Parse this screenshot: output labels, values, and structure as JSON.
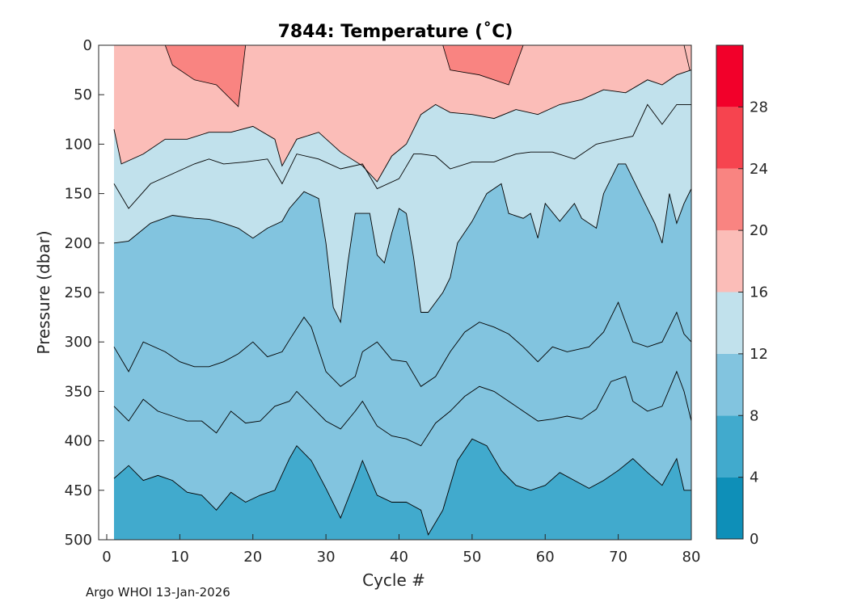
{
  "chart_data": {
    "type": "heatmap",
    "subtype": "filled-contour",
    "title": "7844:  Temperature (˚C)",
    "xlabel": "Cycle #",
    "ylabel": "Pressure (dbar)",
    "xlim": [
      -1,
      80
    ],
    "ylim": [
      0,
      500
    ],
    "y_reversed": true,
    "xticks": [
      "0",
      "10",
      "20",
      "30",
      "40",
      "50",
      "60",
      "70",
      "80"
    ],
    "yticks": [
      "0",
      "50",
      "100",
      "150",
      "200",
      "250",
      "300",
      "350",
      "400",
      "450",
      "500"
    ],
    "colorbar": {
      "range": [
        0,
        32
      ],
      "ticks": [
        "0",
        "4",
        "8",
        "12",
        "16",
        "20",
        "24",
        "28"
      ],
      "bands": [
        {
          "from": 0,
          "to": 4,
          "color": "#0e8fb8"
        },
        {
          "from": 4,
          "to": 8,
          "color": "#41aacd"
        },
        {
          "from": 8,
          "to": 12,
          "color": "#82c4df"
        },
        {
          "from": 12,
          "to": 16,
          "color": "#c1e1ec"
        },
        {
          "from": 16,
          "to": 20,
          "color": "#fbbdb8"
        },
        {
          "from": 20,
          "to": 24,
          "color": "#f98481"
        },
        {
          "from": 24,
          "to": 28,
          "color": "#f6444f"
        },
        {
          "from": 28,
          "to": 32,
          "color": "#f2002a"
        }
      ]
    },
    "isotherms": [
      {
        "temp": 16,
        "depth": [
          [
            1,
            85
          ],
          [
            2,
            120
          ],
          [
            5,
            110
          ],
          [
            8,
            95
          ],
          [
            11,
            95
          ],
          [
            14,
            88
          ],
          [
            17,
            88
          ],
          [
            20,
            82
          ],
          [
            23,
            95
          ],
          [
            24,
            122
          ],
          [
            26,
            95
          ],
          [
            29,
            88
          ],
          [
            32,
            108
          ],
          [
            35,
            122
          ],
          [
            37,
            138
          ],
          [
            39,
            112
          ],
          [
            41,
            100
          ],
          [
            43,
            70
          ],
          [
            45,
            60
          ],
          [
            47,
            68
          ],
          [
            50,
            70
          ],
          [
            53,
            74
          ],
          [
            56,
            65
          ],
          [
            59,
            70
          ],
          [
            62,
            60
          ],
          [
            65,
            55
          ],
          [
            68,
            45
          ],
          [
            71,
            48
          ],
          [
            74,
            35
          ],
          [
            76,
            40
          ],
          [
            78,
            30
          ],
          [
            80,
            25
          ]
        ]
      },
      {
        "temp": 20,
        "depth": [
          [
            8,
            0
          ],
          [
            9,
            20
          ],
          [
            12,
            35
          ],
          [
            15,
            40
          ],
          [
            18,
            62
          ],
          [
            19,
            0
          ],
          [
            46,
            0
          ],
          [
            47,
            25
          ],
          [
            51,
            30
          ],
          [
            55,
            40
          ],
          [
            57,
            0
          ],
          [
            79,
            0
          ],
          [
            80,
            32
          ]
        ]
      },
      {
        "temp": 14,
        "depth": [
          [
            1,
            140
          ],
          [
            3,
            165
          ],
          [
            6,
            140
          ],
          [
            9,
            130
          ],
          [
            12,
            120
          ],
          [
            14,
            115
          ],
          [
            16,
            120
          ],
          [
            19,
            118
          ],
          [
            22,
            115
          ],
          [
            24,
            140
          ],
          [
            26,
            110
          ],
          [
            29,
            115
          ],
          [
            32,
            125
          ],
          [
            35,
            120
          ],
          [
            37,
            145
          ],
          [
            40,
            135
          ],
          [
            42,
            110
          ],
          [
            43,
            110
          ],
          [
            45,
            112
          ],
          [
            47,
            125
          ],
          [
            50,
            118
          ],
          [
            53,
            118
          ],
          [
            56,
            110
          ],
          [
            58,
            108
          ],
          [
            61,
            108
          ],
          [
            64,
            115
          ],
          [
            67,
            100
          ],
          [
            70,
            95
          ],
          [
            72,
            92
          ],
          [
            74,
            60
          ],
          [
            76,
            80
          ],
          [
            78,
            60
          ],
          [
            80,
            60
          ]
        ]
      },
      {
        "temp": 12,
        "depth": [
          [
            1,
            200
          ],
          [
            3,
            198
          ],
          [
            6,
            180
          ],
          [
            9,
            172
          ],
          [
            12,
            175
          ],
          [
            14,
            176
          ],
          [
            16,
            180
          ],
          [
            18,
            185
          ],
          [
            20,
            195
          ],
          [
            22,
            185
          ],
          [
            24,
            178
          ],
          [
            25,
            165
          ],
          [
            27,
            148
          ],
          [
            29,
            155
          ],
          [
            30,
            200
          ],
          [
            31,
            265
          ],
          [
            32,
            280
          ],
          [
            33,
            220
          ],
          [
            34,
            170
          ],
          [
            36,
            170
          ],
          [
            37,
            212
          ],
          [
            38,
            220
          ],
          [
            39,
            190
          ],
          [
            40,
            165
          ],
          [
            41,
            170
          ],
          [
            42,
            215
          ],
          [
            43,
            270
          ],
          [
            44,
            270
          ],
          [
            46,
            250
          ],
          [
            47,
            235
          ],
          [
            48,
            200
          ],
          [
            50,
            178
          ],
          [
            52,
            150
          ],
          [
            54,
            140
          ],
          [
            55,
            170
          ],
          [
            57,
            175
          ],
          [
            58,
            170
          ],
          [
            59,
            195
          ],
          [
            60,
            160
          ],
          [
            62,
            178
          ],
          [
            64,
            160
          ],
          [
            65,
            175
          ],
          [
            67,
            185
          ],
          [
            68,
            150
          ],
          [
            70,
            120
          ],
          [
            71,
            120
          ],
          [
            73,
            150
          ],
          [
            75,
            180
          ],
          [
            76,
            200
          ],
          [
            77,
            150
          ],
          [
            78,
            180
          ],
          [
            79,
            160
          ],
          [
            80,
            145
          ]
        ]
      },
      {
        "temp": 10,
        "depth": [
          [
            1,
            305
          ],
          [
            3,
            330
          ],
          [
            5,
            300
          ],
          [
            8,
            310
          ],
          [
            10,
            320
          ],
          [
            12,
            325
          ],
          [
            14,
            325
          ],
          [
            16,
            320
          ],
          [
            18,
            312
          ],
          [
            20,
            300
          ],
          [
            22,
            315
          ],
          [
            24,
            310
          ],
          [
            25,
            298
          ],
          [
            27,
            275
          ],
          [
            28,
            285
          ],
          [
            30,
            330
          ],
          [
            32,
            345
          ],
          [
            34,
            335
          ],
          [
            35,
            310
          ],
          [
            37,
            300
          ],
          [
            39,
            318
          ],
          [
            41,
            320
          ],
          [
            43,
            345
          ],
          [
            45,
            335
          ],
          [
            47,
            310
          ],
          [
            49,
            290
          ],
          [
            51,
            280
          ],
          [
            53,
            285
          ],
          [
            55,
            292
          ],
          [
            57,
            305
          ],
          [
            59,
            320
          ],
          [
            61,
            305
          ],
          [
            63,
            310
          ],
          [
            66,
            305
          ],
          [
            68,
            290
          ],
          [
            70,
            260
          ],
          [
            72,
            300
          ],
          [
            74,
            305
          ],
          [
            76,
            300
          ],
          [
            78,
            270
          ],
          [
            79,
            292
          ],
          [
            80,
            300
          ]
        ]
      },
      {
        "temp": 8,
        "depth": [
          [
            1,
            365
          ],
          [
            3,
            380
          ],
          [
            5,
            358
          ],
          [
            7,
            370
          ],
          [
            9,
            375
          ],
          [
            11,
            380
          ],
          [
            13,
            380
          ],
          [
            15,
            392
          ],
          [
            17,
            370
          ],
          [
            19,
            382
          ],
          [
            21,
            380
          ],
          [
            23,
            365
          ],
          [
            25,
            360
          ],
          [
            26,
            350
          ],
          [
            28,
            365
          ],
          [
            30,
            380
          ],
          [
            32,
            388
          ],
          [
            34,
            370
          ],
          [
            35,
            360
          ],
          [
            37,
            385
          ],
          [
            39,
            395
          ],
          [
            41,
            398
          ],
          [
            43,
            405
          ],
          [
            45,
            382
          ],
          [
            47,
            370
          ],
          [
            49,
            355
          ],
          [
            51,
            345
          ],
          [
            53,
            350
          ],
          [
            55,
            360
          ],
          [
            57,
            370
          ],
          [
            59,
            380
          ],
          [
            61,
            378
          ],
          [
            63,
            375
          ],
          [
            65,
            378
          ],
          [
            67,
            368
          ],
          [
            69,
            340
          ],
          [
            71,
            335
          ],
          [
            72,
            360
          ],
          [
            74,
            370
          ],
          [
            76,
            365
          ],
          [
            78,
            330
          ],
          [
            79,
            350
          ],
          [
            80,
            380
          ]
        ]
      },
      {
        "temp": 6,
        "depth": [
          [
            1,
            438
          ],
          [
            3,
            425
          ],
          [
            5,
            440
          ],
          [
            7,
            435
          ],
          [
            9,
            440
          ],
          [
            11,
            452
          ],
          [
            13,
            455
          ],
          [
            15,
            470
          ],
          [
            17,
            452
          ],
          [
            19,
            462
          ],
          [
            21,
            455
          ],
          [
            23,
            450
          ],
          [
            25,
            418
          ],
          [
            26,
            405
          ],
          [
            28,
            420
          ],
          [
            30,
            448
          ],
          [
            32,
            478
          ],
          [
            34,
            440
          ],
          [
            35,
            420
          ],
          [
            37,
            455
          ],
          [
            39,
            462
          ],
          [
            41,
            462
          ],
          [
            43,
            470
          ],
          [
            44,
            495
          ],
          [
            46,
            470
          ],
          [
            48,
            420
          ],
          [
            50,
            398
          ],
          [
            52,
            405
          ],
          [
            54,
            430
          ],
          [
            56,
            445
          ],
          [
            58,
            450
          ],
          [
            60,
            445
          ],
          [
            62,
            432
          ],
          [
            64,
            440
          ],
          [
            66,
            448
          ],
          [
            68,
            440
          ],
          [
            70,
            430
          ],
          [
            72,
            418
          ],
          [
            74,
            432
          ],
          [
            76,
            445
          ],
          [
            78,
            418
          ],
          [
            79,
            450
          ],
          [
            80,
            450
          ]
        ]
      }
    ]
  },
  "footer": {
    "text": "Argo WHOI 13-Jan-2026"
  }
}
